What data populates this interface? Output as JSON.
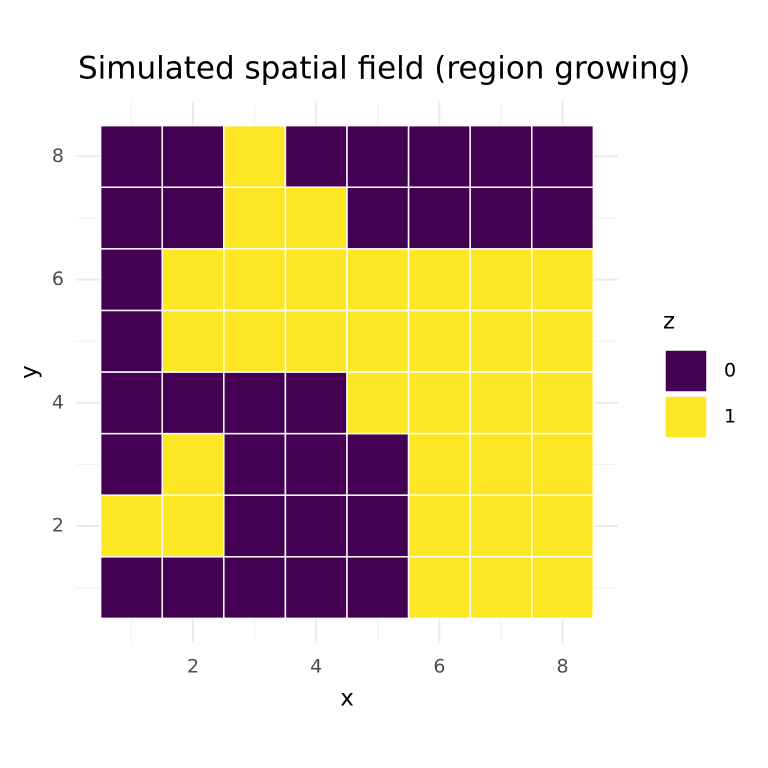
{
  "chart_data": {
    "type": "heatmap",
    "title": "Simulated spatial field (region growing)",
    "x_label": "x",
    "y_label": "y",
    "x": [
      1,
      2,
      3,
      4,
      5,
      6,
      7,
      8
    ],
    "y": [
      1,
      2,
      3,
      4,
      5,
      6,
      7,
      8
    ],
    "z": [
      [
        0,
        0,
        0,
        0,
        0,
        1,
        1,
        1
      ],
      [
        1,
        1,
        0,
        0,
        0,
        1,
        1,
        1
      ],
      [
        0,
        1,
        0,
        0,
        0,
        1,
        1,
        1
      ],
      [
        0,
        0,
        0,
        0,
        1,
        1,
        1,
        1
      ],
      [
        0,
        1,
        1,
        1,
        1,
        1,
        1,
        1
      ],
      [
        0,
        1,
        1,
        1,
        1,
        1,
        1,
        1
      ],
      [
        0,
        0,
        1,
        1,
        0,
        0,
        0,
        0
      ],
      [
        0,
        0,
        1,
        0,
        0,
        0,
        0,
        0
      ]
    ],
    "legend": {
      "title": "z",
      "levels": [
        0,
        1
      ],
      "colors": [
        "#440154",
        "#FDE725"
      ]
    },
    "xlim": [
      0.1,
      8.9
    ],
    "ylim": [
      0.1,
      8.9
    ],
    "xticks": [
      2,
      4,
      6,
      8
    ],
    "yticks": [
      2,
      4,
      6,
      8
    ],
    "x_minor_ticks": [
      1,
      3,
      5,
      7
    ],
    "y_minor_ticks": [
      1,
      3,
      5,
      7
    ],
    "grid": true
  }
}
